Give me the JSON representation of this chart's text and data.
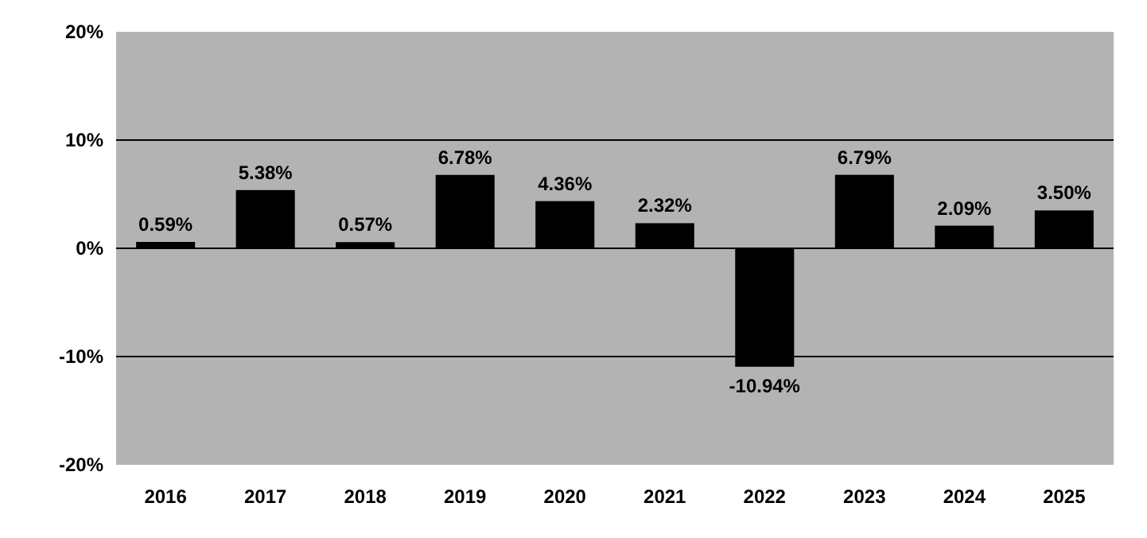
{
  "chart_data": {
    "type": "bar",
    "categories": [
      "2016",
      "2017",
      "2018",
      "2019",
      "2020",
      "2021",
      "2022",
      "2023",
      "2024",
      "2025"
    ],
    "values": [
      0.59,
      5.38,
      0.57,
      6.78,
      4.36,
      2.32,
      -10.94,
      6.79,
      2.09,
      3.5
    ],
    "value_labels": [
      "0.59%",
      "5.38%",
      "0.57%",
      "6.78%",
      "4.36%",
      "2.32%",
      "-10.94%",
      "6.79%",
      "2.09%",
      "3.50%"
    ],
    "color": "#000000",
    "ylim": [
      -20,
      20
    ],
    "yticks": [
      {
        "value": -20,
        "label": "-20%"
      },
      {
        "value": -10,
        "label": "-10%"
      },
      {
        "value": 0,
        "label": "0%"
      },
      {
        "value": 10,
        "label": "10%"
      },
      {
        "value": 20,
        "label": "20%"
      }
    ],
    "grid": "y"
  }
}
